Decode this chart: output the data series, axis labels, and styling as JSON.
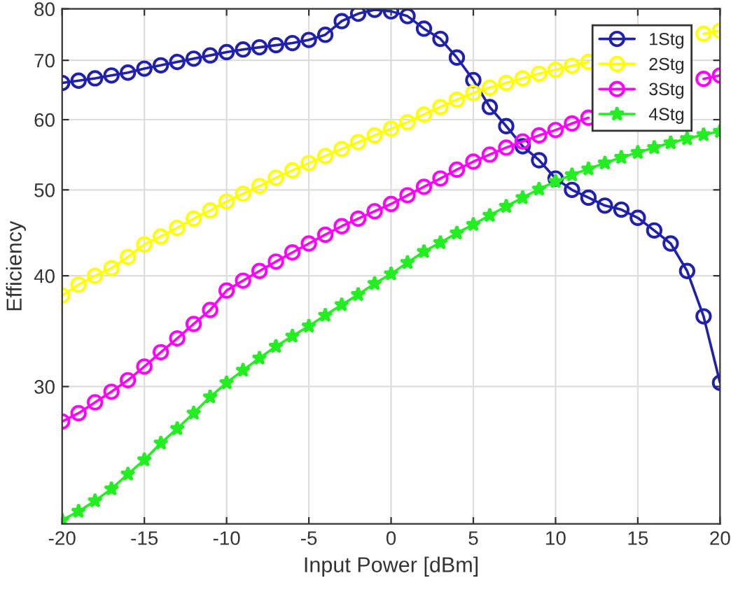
{
  "chart_data": {
    "type": "line",
    "xlabel": "Input Power [dBm]",
    "ylabel": "Efficiency",
    "x": [
      -20,
      -19,
      -18,
      -17,
      -16,
      -15,
      -14,
      -13,
      -12,
      -11,
      -10,
      -9,
      -8,
      -7,
      -6,
      -5,
      -4,
      -3,
      -2,
      -1,
      0,
      1,
      2,
      3,
      4,
      5,
      6,
      7,
      8,
      9,
      10,
      11,
      12,
      13,
      14,
      15,
      16,
      17,
      18,
      19,
      20
    ],
    "series": [
      {
        "name": "1Stg",
        "color": "#1f1fb0",
        "marker": "circle",
        "values": [
          66,
          66.4,
          66.8,
          67.3,
          67.8,
          68.5,
          69.1,
          69.7,
          70.3,
          70.9,
          71.5,
          72,
          72.4,
          72.8,
          73.2,
          73.8,
          74.8,
          77.5,
          79,
          79.8,
          79.5,
          78.5,
          76,
          74,
          70.5,
          66.5,
          62,
          59,
          56,
          54,
          51.5,
          50,
          49,
          48,
          47.5,
          46.5,
          45,
          43.5,
          40.5,
          36,
          30.3
        ]
      },
      {
        "name": "2Stg",
        "color": "#ffff00",
        "marker": "circle",
        "values": [
          38,
          39.1,
          40,
          40.8,
          42,
          43.4,
          44.3,
          45.3,
          46.4,
          47.4,
          48.5,
          49.5,
          50.5,
          51.6,
          52.6,
          53.6,
          54.6,
          55.6,
          56.6,
          57.6,
          58.6,
          59.6,
          60.8,
          62,
          63.2,
          64.3,
          65.2,
          66,
          66.8,
          67.6,
          68.3,
          69,
          69.7,
          null,
          null,
          null,
          null,
          null,
          null,
          75,
          75.6
        ]
      },
      {
        "name": "3Stg",
        "color": "#ff00ff",
        "marker": "circle",
        "values": [
          27.4,
          28,
          28.8,
          29.6,
          30.5,
          31.6,
          32.8,
          34,
          35.3,
          36.6,
          38.5,
          39.5,
          40.5,
          41.5,
          42.5,
          43.5,
          44.5,
          45.5,
          46.4,
          47.3,
          48.2,
          49.3,
          50.4,
          51.5,
          52.7,
          53.8,
          54.8,
          55.8,
          56.7,
          57.6,
          58.4,
          59.4,
          60.3,
          null,
          null,
          null,
          null,
          null,
          null,
          66.7,
          67.3
        ]
      },
      {
        "name": "4Stg",
        "color": "#22ee22",
        "marker": "star",
        "values": [
          21.2,
          21.7,
          22.3,
          23,
          23.9,
          24.8,
          25.9,
          26.9,
          28,
          29.2,
          30.3,
          31.3,
          32.3,
          33.3,
          34.2,
          35.1,
          36.1,
          37.1,
          38.1,
          39.2,
          40.2,
          41.4,
          42.6,
          43.6,
          44.7,
          45.7,
          46.8,
          47.9,
          49,
          50.1,
          51.1,
          52,
          52.8,
          53.6,
          54.4,
          55.1,
          55.8,
          56.5,
          57.1,
          57.7,
          58.2
        ]
      }
    ],
    "log": "y",
    "xlim": [
      -20,
      20
    ],
    "xticks": [
      -20,
      -15,
      -10,
      -5,
      0,
      5,
      10,
      15,
      20
    ],
    "ylim": [
      21,
      80
    ],
    "yticks": [
      30,
      40,
      50,
      60,
      70,
      80
    ],
    "grid": true,
    "legend": "top right",
    "line_style": "solid"
  }
}
